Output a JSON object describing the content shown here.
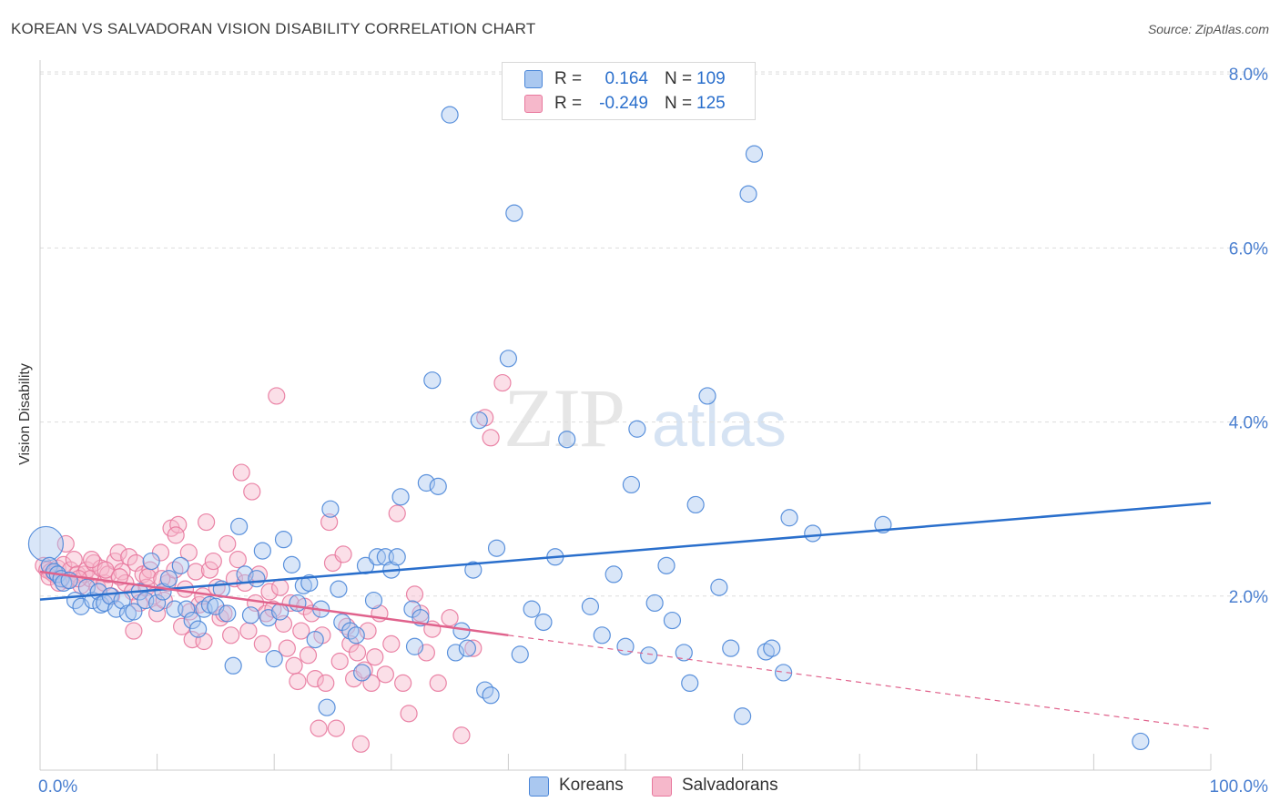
{
  "title": "KOREAN VS SALVADORAN VISION DISABILITY CORRELATION CHART",
  "source": "Source: ZipAtlas.com",
  "watermark": {
    "zip": "ZIP",
    "atlas": "atlas"
  },
  "colors": {
    "blue": "#4a86d8",
    "blue_fill": "#aac8f0",
    "blue_line": "#2a6fcc",
    "pink": "#e8789d",
    "pink_fill": "#f6b8cb",
    "pink_line": "#e0628c",
    "axis_text": "#4a7fd0",
    "grid": "#dddddd"
  },
  "legend": {
    "rows": [
      {
        "r_label": "R =",
        "r_value": "0.164",
        "n_label": "N =",
        "n_value": "109",
        "color": "#4a86d8"
      },
      {
        "r_label": "R =",
        "r_value": "-0.249",
        "n_label": "N =",
        "n_value": "125",
        "color": "#e8789d"
      }
    ]
  },
  "bottom_legend": [
    {
      "label": "Koreans",
      "color": "#4a86d8"
    },
    {
      "label": "Salvadorans",
      "color": "#e8789d"
    }
  ],
  "chart_data": {
    "type": "scatter",
    "title": "KOREAN VS SALVADORAN VISION DISABILITY CORRELATION CHART",
    "xlabel": "",
    "ylabel": "Vision Disability",
    "xlim": [
      0,
      100
    ],
    "ylim": [
      0,
      8.2
    ],
    "x_tick_labels": [
      "0.0%",
      "100.0%"
    ],
    "y_ticks": [
      2.0,
      4.0,
      6.0,
      8.0
    ],
    "y_tick_labels": [
      "2.0%",
      "4.0%",
      "6.0%",
      "8.0%"
    ],
    "grid": true,
    "legend_position": "top-center",
    "series": [
      {
        "name": "Koreans",
        "color": "#4a86d8",
        "trend": {
          "x0": 0,
          "y0": 1.96,
          "x1": 100,
          "y1": 3.07
        },
        "points": [
          [
            0.5,
            2.6
          ],
          [
            0.8,
            2.35
          ],
          [
            1.2,
            2.28
          ],
          [
            1.5,
            2.25
          ],
          [
            1.8,
            2.2
          ],
          [
            2.0,
            2.15
          ],
          [
            2.5,
            2.18
          ],
          [
            3.0,
            1.95
          ],
          [
            3.5,
            1.88
          ],
          [
            4.0,
            2.1
          ],
          [
            4.5,
            1.95
          ],
          [
            5.0,
            2.05
          ],
          [
            5.2,
            1.9
          ],
          [
            5.5,
            1.92
          ],
          [
            6.0,
            2.0
          ],
          [
            6.5,
            1.85
          ],
          [
            7.0,
            1.95
          ],
          [
            7.5,
            1.8
          ],
          [
            8.0,
            1.82
          ],
          [
            8.5,
            2.05
          ],
          [
            9.0,
            1.95
          ],
          [
            9.5,
            2.4
          ],
          [
            10.0,
            1.92
          ],
          [
            10.5,
            2.05
          ],
          [
            11.0,
            2.2
          ],
          [
            11.5,
            1.85
          ],
          [
            12.0,
            2.35
          ],
          [
            12.5,
            1.85
          ],
          [
            13.0,
            1.72
          ],
          [
            13.5,
            1.62
          ],
          [
            14.0,
            1.85
          ],
          [
            14.5,
            1.9
          ],
          [
            15.0,
            1.88
          ],
          [
            15.5,
            2.08
          ],
          [
            16.0,
            1.8
          ],
          [
            16.5,
            1.2
          ],
          [
            17.0,
            2.8
          ],
          [
            17.5,
            2.25
          ],
          [
            18.0,
            1.78
          ],
          [
            18.5,
            2.2
          ],
          [
            19.0,
            2.52
          ],
          [
            19.5,
            1.75
          ],
          [
            20.0,
            1.28
          ],
          [
            20.5,
            1.82
          ],
          [
            20.8,
            2.65
          ],
          [
            21.5,
            2.36
          ],
          [
            22.0,
            1.92
          ],
          [
            22.5,
            2.12
          ],
          [
            23.0,
            2.15
          ],
          [
            23.5,
            1.5
          ],
          [
            24.0,
            1.85
          ],
          [
            24.5,
            0.72
          ],
          [
            24.8,
            3.0
          ],
          [
            25.5,
            2.08
          ],
          [
            25.8,
            1.7
          ],
          [
            26.5,
            1.6
          ],
          [
            27.0,
            1.55
          ],
          [
            27.5,
            1.12
          ],
          [
            27.8,
            2.35
          ],
          [
            28.5,
            1.95
          ],
          [
            28.8,
            2.45
          ],
          [
            29.5,
            2.45
          ],
          [
            30.0,
            2.3
          ],
          [
            30.5,
            2.45
          ],
          [
            30.8,
            3.14
          ],
          [
            31.8,
            1.85
          ],
          [
            32.0,
            1.42
          ],
          [
            32.5,
            1.75
          ],
          [
            33.0,
            3.3
          ],
          [
            33.5,
            4.48
          ],
          [
            34.0,
            3.26
          ],
          [
            35.0,
            7.53
          ],
          [
            35.5,
            1.35
          ],
          [
            36.0,
            1.6
          ],
          [
            36.5,
            1.4
          ],
          [
            37.0,
            2.3
          ],
          [
            37.5,
            4.02
          ],
          [
            38.0,
            0.92
          ],
          [
            38.5,
            0.86
          ],
          [
            39.0,
            2.55
          ],
          [
            40.0,
            4.73
          ],
          [
            40.5,
            6.4
          ],
          [
            41.0,
            1.33
          ],
          [
            42.0,
            1.85
          ],
          [
            43.0,
            1.7
          ],
          [
            44.0,
            2.45
          ],
          [
            45.0,
            3.8
          ],
          [
            47.0,
            1.88
          ],
          [
            48.0,
            1.55
          ],
          [
            49.0,
            2.25
          ],
          [
            50.0,
            1.42
          ],
          [
            50.5,
            3.28
          ],
          [
            51.0,
            3.92
          ],
          [
            52.0,
            1.32
          ],
          [
            52.5,
            1.92
          ],
          [
            53.5,
            2.35
          ],
          [
            54.0,
            1.72
          ],
          [
            55.0,
            1.35
          ],
          [
            55.5,
            1.0
          ],
          [
            56.0,
            3.05
          ],
          [
            57.0,
            4.3
          ],
          [
            58.0,
            2.1
          ],
          [
            59.0,
            1.4
          ],
          [
            60.0,
            0.62
          ],
          [
            60.5,
            6.62
          ],
          [
            61.0,
            7.08
          ],
          [
            62.0,
            1.36
          ],
          [
            62.5,
            1.4
          ],
          [
            63.5,
            1.12
          ],
          [
            64.0,
            2.9
          ],
          [
            66.0,
            2.72
          ],
          [
            72.0,
            2.82
          ],
          [
            94.0,
            0.33
          ]
        ]
      },
      {
        "name": "Salvadorans",
        "color": "#e8789d",
        "trend": {
          "x0": 0,
          "y0": 2.28,
          "x1": 40,
          "y1": 1.55,
          "x_dash_end": 100,
          "y_dash_end": 0.47
        },
        "points": [
          [
            0.3,
            2.35
          ],
          [
            0.6,
            2.3
          ],
          [
            0.9,
            2.28
          ],
          [
            1.2,
            2.25
          ],
          [
            1.5,
            2.32
          ],
          [
            1.8,
            2.2
          ],
          [
            2.0,
            2.36
          ],
          [
            2.3,
            2.18
          ],
          [
            2.6,
            2.3
          ],
          [
            2.9,
            2.42
          ],
          [
            3.2,
            2.25
          ],
          [
            3.5,
            2.12
          ],
          [
            3.8,
            2.25
          ],
          [
            4.0,
            2.3
          ],
          [
            4.3,
            2.2
          ],
          [
            4.6,
            2.38
          ],
          [
            4.9,
            2.1
          ],
          [
            5.2,
            2.32
          ],
          [
            5.5,
            2.15
          ],
          [
            5.8,
            2.25
          ],
          [
            6.1,
            2.0
          ],
          [
            6.4,
            2.4
          ],
          [
            6.7,
            2.5
          ],
          [
            7.0,
            2.28
          ],
          [
            7.3,
            2.15
          ],
          [
            7.6,
            2.45
          ],
          [
            7.9,
            2.05
          ],
          [
            8.2,
            2.38
          ],
          [
            8.5,
            1.92
          ],
          [
            8.8,
            2.25
          ],
          [
            9.1,
            2.1
          ],
          [
            9.4,
            2.3
          ],
          [
            9.7,
            2.0
          ],
          [
            10.0,
            1.8
          ],
          [
            10.3,
            2.5
          ],
          [
            10.6,
            1.95
          ],
          [
            10.9,
            2.15
          ],
          [
            11.2,
            2.78
          ],
          [
            11.5,
            2.3
          ],
          [
            11.8,
            2.82
          ],
          [
            12.1,
            1.65
          ],
          [
            12.4,
            2.08
          ],
          [
            12.7,
            2.5
          ],
          [
            13.0,
            1.5
          ],
          [
            13.3,
            2.28
          ],
          [
            13.6,
            1.9
          ],
          [
            13.9,
            2.0
          ],
          [
            14.2,
            2.85
          ],
          [
            14.5,
            2.3
          ],
          [
            14.8,
            2.4
          ],
          [
            15.1,
            2.1
          ],
          [
            15.4,
            1.75
          ],
          [
            15.7,
            1.8
          ],
          [
            16.0,
            2.6
          ],
          [
            16.3,
            1.55
          ],
          [
            16.6,
            2.2
          ],
          [
            16.9,
            2.42
          ],
          [
            17.2,
            3.42
          ],
          [
            17.5,
            2.15
          ],
          [
            17.8,
            1.6
          ],
          [
            18.1,
            3.2
          ],
          [
            18.4,
            1.92
          ],
          [
            18.7,
            2.25
          ],
          [
            19.0,
            1.45
          ],
          [
            19.3,
            1.8
          ],
          [
            19.6,
            2.05
          ],
          [
            19.9,
            1.85
          ],
          [
            20.2,
            4.3
          ],
          [
            20.5,
            2.1
          ],
          [
            20.8,
            1.68
          ],
          [
            21.1,
            1.4
          ],
          [
            21.4,
            1.92
          ],
          [
            21.7,
            1.2
          ],
          [
            22.0,
            1.02
          ],
          [
            22.3,
            1.6
          ],
          [
            22.6,
            1.88
          ],
          [
            22.9,
            1.32
          ],
          [
            23.2,
            1.8
          ],
          [
            23.5,
            1.05
          ],
          [
            23.8,
            0.48
          ],
          [
            24.1,
            1.55
          ],
          [
            24.4,
            1.0
          ],
          [
            24.7,
            2.85
          ],
          [
            25.0,
            2.38
          ],
          [
            25.3,
            0.48
          ],
          [
            25.6,
            1.25
          ],
          [
            25.9,
            2.48
          ],
          [
            26.2,
            1.65
          ],
          [
            26.5,
            1.45
          ],
          [
            26.8,
            1.05
          ],
          [
            27.1,
            1.35
          ],
          [
            27.4,
            0.3
          ],
          [
            27.7,
            1.15
          ],
          [
            28.0,
            1.6
          ],
          [
            28.3,
            1.0
          ],
          [
            28.6,
            1.3
          ],
          [
            29.0,
            1.8
          ],
          [
            29.5,
            1.1
          ],
          [
            30.0,
            1.45
          ],
          [
            30.5,
            2.95
          ],
          [
            31.0,
            1.0
          ],
          [
            31.5,
            0.65
          ],
          [
            32.0,
            2.02
          ],
          [
            32.5,
            1.8
          ],
          [
            33.0,
            1.35
          ],
          [
            33.5,
            1.62
          ],
          [
            34.0,
            1.0
          ],
          [
            35.0,
            1.75
          ],
          [
            36.0,
            0.4
          ],
          [
            37.0,
            1.4
          ],
          [
            38.0,
            4.05
          ],
          [
            38.5,
            3.82
          ],
          [
            39.5,
            4.45
          ],
          [
            0.8,
            2.22
          ],
          [
            1.6,
            2.15
          ],
          [
            2.2,
            2.6
          ],
          [
            3.3,
            2.2
          ],
          [
            4.4,
            2.42
          ],
          [
            5.6,
            2.3
          ],
          [
            6.8,
            2.22
          ],
          [
            8.0,
            1.6
          ],
          [
            9.2,
            2.22
          ],
          [
            10.4,
            2.2
          ],
          [
            11.6,
            2.7
          ],
          [
            12.8,
            1.82
          ],
          [
            14.0,
            1.48
          ]
        ]
      }
    ]
  }
}
